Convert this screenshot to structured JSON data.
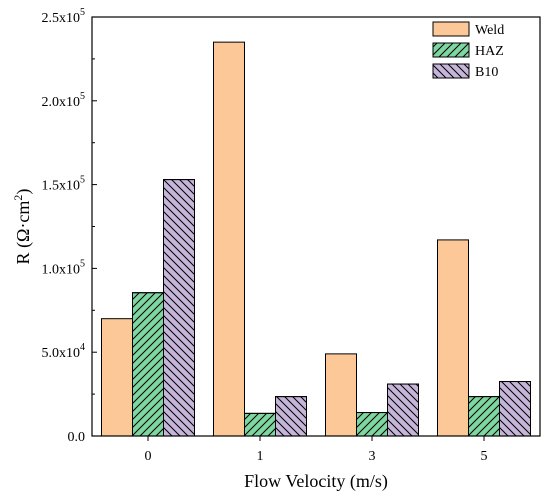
{
  "chart_data": {
    "type": "bar",
    "xlabel": "Flow Velocity (m/s)",
    "ylabel": "R (Ω·cm²)",
    "categories": [
      "0",
      "1",
      "3",
      "5"
    ],
    "ylim": [
      0,
      250000
    ],
    "yticks": [
      {
        "value": 0,
        "mant": "0.0",
        "exp": ""
      },
      {
        "value": 50000,
        "mant": "5.0x10",
        "exp": "4"
      },
      {
        "value": 100000,
        "mant": "1.0x10",
        "exp": "5"
      },
      {
        "value": 150000,
        "mant": "1.5x10",
        "exp": "5"
      },
      {
        "value": 200000,
        "mant": "2.0x10",
        "exp": "5"
      },
      {
        "value": 250000,
        "mant": "2.5x10",
        "exp": "5"
      }
    ],
    "series": [
      {
        "name": "Weld",
        "values": [
          70000,
          235000,
          49000,
          117000
        ],
        "color": "#fdc897",
        "pattern": "none"
      },
      {
        "name": "HAZ",
        "values": [
          85500,
          13500,
          14000,
          23500
        ],
        "color": "#7ed6a0",
        "pattern": "forward"
      },
      {
        "name": "B10",
        "values": [
          153000,
          23500,
          31000,
          32500
        ],
        "color": "#c5b5d8",
        "pattern": "backward"
      }
    ],
    "legend_position": "top-right",
    "grid": false
  }
}
